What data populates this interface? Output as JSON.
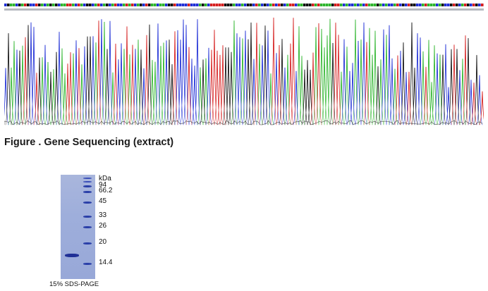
{
  "figure": {
    "caption": "Figure . Gene Sequencing (extract)"
  },
  "chromatogram": {
    "base_colors": {
      "A": "#2db52d",
      "C": "#1f2fd6",
      "G": "#111111",
      "T": "#d62020"
    },
    "bases_shown": 170
  },
  "gel": {
    "unit_label": "kDa",
    "markers": [
      {
        "label": "94",
        "kda": 94
      },
      {
        "label": "66.2",
        "kda": 66.2
      },
      {
        "label": "45",
        "kda": 45
      },
      {
        "label": "33",
        "kda": 33
      },
      {
        "label": "26",
        "kda": 26
      },
      {
        "label": "20",
        "kda": 20
      },
      {
        "label": "14.4",
        "kda": 14.4
      }
    ],
    "sample_band_kda": 16,
    "caption": "15% SDS-PAGE"
  }
}
